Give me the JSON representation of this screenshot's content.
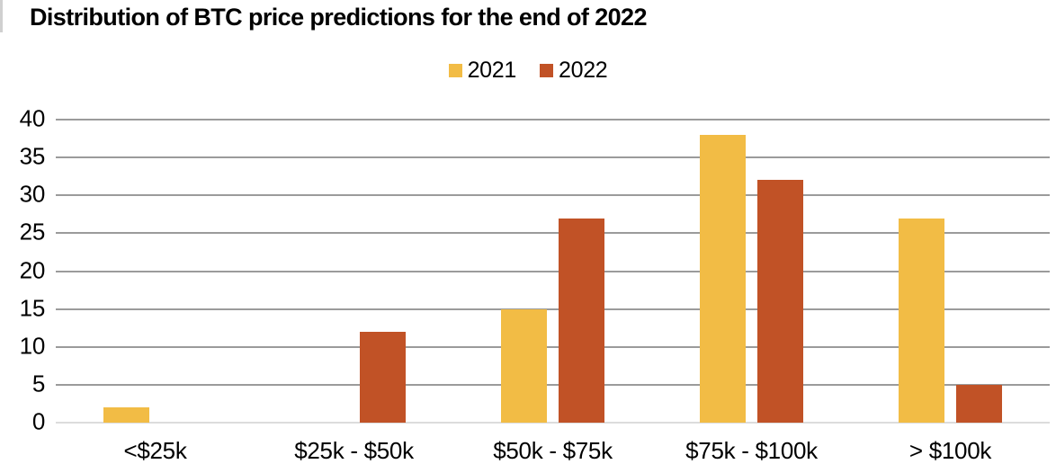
{
  "title": "Distribution of BTC price predictions for the end of 2022",
  "legend": {
    "items": [
      {
        "label": "2021",
        "color": "#F2BC45"
      },
      {
        "label": "2022",
        "color": "#C15226"
      }
    ]
  },
  "colors": {
    "series_2021": "#F2BC45",
    "series_2022": "#C15226",
    "gridline": "#9b9b9b",
    "baseline": "#dcdcdc",
    "text": "#000000"
  },
  "chart_data": {
    "type": "bar",
    "title": "Distribution of BTC price predictions for the end of 2022",
    "categories": [
      "<$25k",
      "$25k - $50k",
      "$50k - $75k",
      "$75k - $100k",
      "> $100k"
    ],
    "series": [
      {
        "name": "2021",
        "color": "#F2BC45",
        "values": [
          2,
          0,
          15,
          38,
          27
        ]
      },
      {
        "name": "2022",
        "color": "#C15226",
        "values": [
          0,
          12,
          27,
          32,
          5
        ]
      }
    ],
    "xlabel": "",
    "ylabel": "",
    "ylim": [
      0,
      40
    ],
    "yticks": [
      0,
      5,
      10,
      15,
      20,
      25,
      30,
      35,
      40
    ],
    "grid": "horizontal",
    "legend_position": "top-center"
  }
}
